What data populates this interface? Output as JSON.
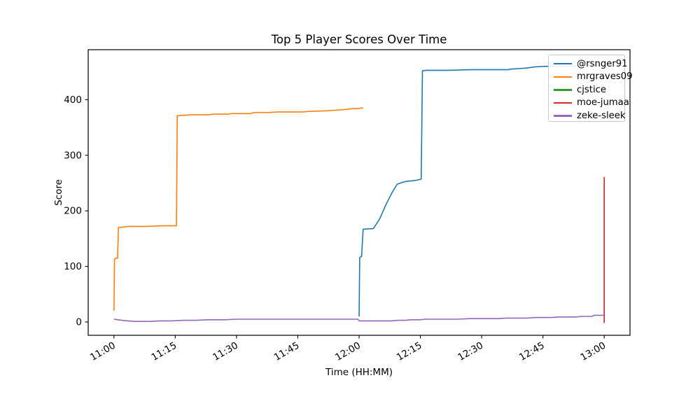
{
  "chart_data": {
    "type": "line",
    "title": "Top 5 Player Scores Over Time",
    "xlabel": "Time (HH:MM)",
    "ylabel": "Score",
    "x_unit": "minutes after 11:00",
    "xlim": [
      -6.3,
      126.3
    ],
    "ylim": [
      -24,
      490
    ],
    "grid": false,
    "legend_position": "upper right",
    "x_ticks": [
      {
        "t": 0,
        "label": "11:00"
      },
      {
        "t": 15,
        "label": "11:15"
      },
      {
        "t": 30,
        "label": "11:30"
      },
      {
        "t": 45,
        "label": "11:45"
      },
      {
        "t": 60,
        "label": "12:00"
      },
      {
        "t": 75,
        "label": "12:15"
      },
      {
        "t": 90,
        "label": "12:30"
      },
      {
        "t": 105,
        "label": "12:45"
      },
      {
        "t": 120,
        "label": "13:00"
      }
    ],
    "y_ticks": [
      0,
      100,
      200,
      300,
      400
    ],
    "series": [
      {
        "name": "@rsnger91",
        "color": "#1f77b4",
        "points": [
          [
            60,
            10
          ],
          [
            60.15,
            116
          ],
          [
            60.6,
            118
          ],
          [
            61,
            167
          ],
          [
            63.5,
            168
          ],
          [
            65,
            185
          ],
          [
            66.5,
            210
          ],
          [
            68,
            232
          ],
          [
            69.3,
            248
          ],
          [
            70.5,
            251
          ],
          [
            71.5,
            253
          ],
          [
            73,
            254
          ],
          [
            74,
            255
          ],
          [
            75.2,
            257
          ],
          [
            75.5,
            452
          ],
          [
            76.5,
            453
          ],
          [
            82,
            453
          ],
          [
            87,
            454
          ],
          [
            93,
            454
          ],
          [
            96.5,
            454
          ],
          [
            97,
            455
          ],
          [
            99,
            456
          ],
          [
            101,
            457
          ],
          [
            103,
            459
          ],
          [
            105.5,
            460
          ],
          [
            109,
            460
          ],
          [
            112,
            461
          ],
          [
            116,
            461
          ],
          [
            120,
            462
          ]
        ]
      },
      {
        "name": "mrgraves09",
        "color": "#ff7f0e",
        "points": [
          [
            0,
            20
          ],
          [
            0.15,
            113
          ],
          [
            0.5,
            115
          ],
          [
            0.9,
            115
          ],
          [
            1.1,
            170
          ],
          [
            2.5,
            171
          ],
          [
            3.5,
            172
          ],
          [
            8,
            172
          ],
          [
            12,
            173
          ],
          [
            15.3,
            173
          ],
          [
            15.5,
            371
          ],
          [
            17,
            372
          ],
          [
            19,
            373
          ],
          [
            23.5,
            373
          ],
          [
            24,
            374
          ],
          [
            28,
            374
          ],
          [
            28.7,
            375
          ],
          [
            33.5,
            375
          ],
          [
            34.2,
            377
          ],
          [
            38,
            377
          ],
          [
            40,
            378
          ],
          [
            46,
            378
          ],
          [
            48,
            379
          ],
          [
            52,
            380
          ],
          [
            54,
            381
          ],
          [
            56,
            382
          ],
          [
            57.5,
            383
          ],
          [
            58.5,
            384
          ],
          [
            60,
            384
          ],
          [
            60.3,
            385
          ],
          [
            61,
            385
          ]
        ]
      },
      {
        "name": "cjstice",
        "color": "#2ca02c",
        "note": "line not visible in plot; fully covered by moe-jumaa vertical spike at 13:00",
        "points": [
          [
            120,
            0
          ],
          [
            120,
            250
          ]
        ]
      },
      {
        "name": "moe-jumaa",
        "color": "#d62728",
        "points": [
          [
            120,
            -2
          ],
          [
            120,
            261
          ]
        ]
      },
      {
        "name": "zeke-sleek",
        "color": "#9467bd",
        "points": [
          [
            0,
            5
          ],
          [
            1,
            4
          ],
          [
            2,
            3
          ],
          [
            3.5,
            2
          ],
          [
            5,
            1
          ],
          [
            9,
            1
          ],
          [
            11,
            2
          ],
          [
            14,
            2
          ],
          [
            17,
            3
          ],
          [
            20,
            3
          ],
          [
            23,
            4
          ],
          [
            27,
            4
          ],
          [
            30,
            5
          ],
          [
            40,
            5
          ],
          [
            50,
            5
          ],
          [
            59.7,
            5
          ],
          [
            60,
            2
          ],
          [
            64,
            2
          ],
          [
            68,
            2
          ],
          [
            69.5,
            3
          ],
          [
            71.5,
            3
          ],
          [
            72.5,
            4
          ],
          [
            75,
            4
          ],
          [
            76,
            5
          ],
          [
            84,
            5
          ],
          [
            87,
            6
          ],
          [
            94,
            6
          ],
          [
            96,
            7
          ],
          [
            101,
            7
          ],
          [
            103,
            8
          ],
          [
            107,
            8
          ],
          [
            109,
            9
          ],
          [
            113,
            9
          ],
          [
            114.5,
            10
          ],
          [
            117,
            10
          ],
          [
            117.5,
            12
          ],
          [
            119,
            12
          ],
          [
            120,
            12
          ]
        ]
      }
    ]
  }
}
